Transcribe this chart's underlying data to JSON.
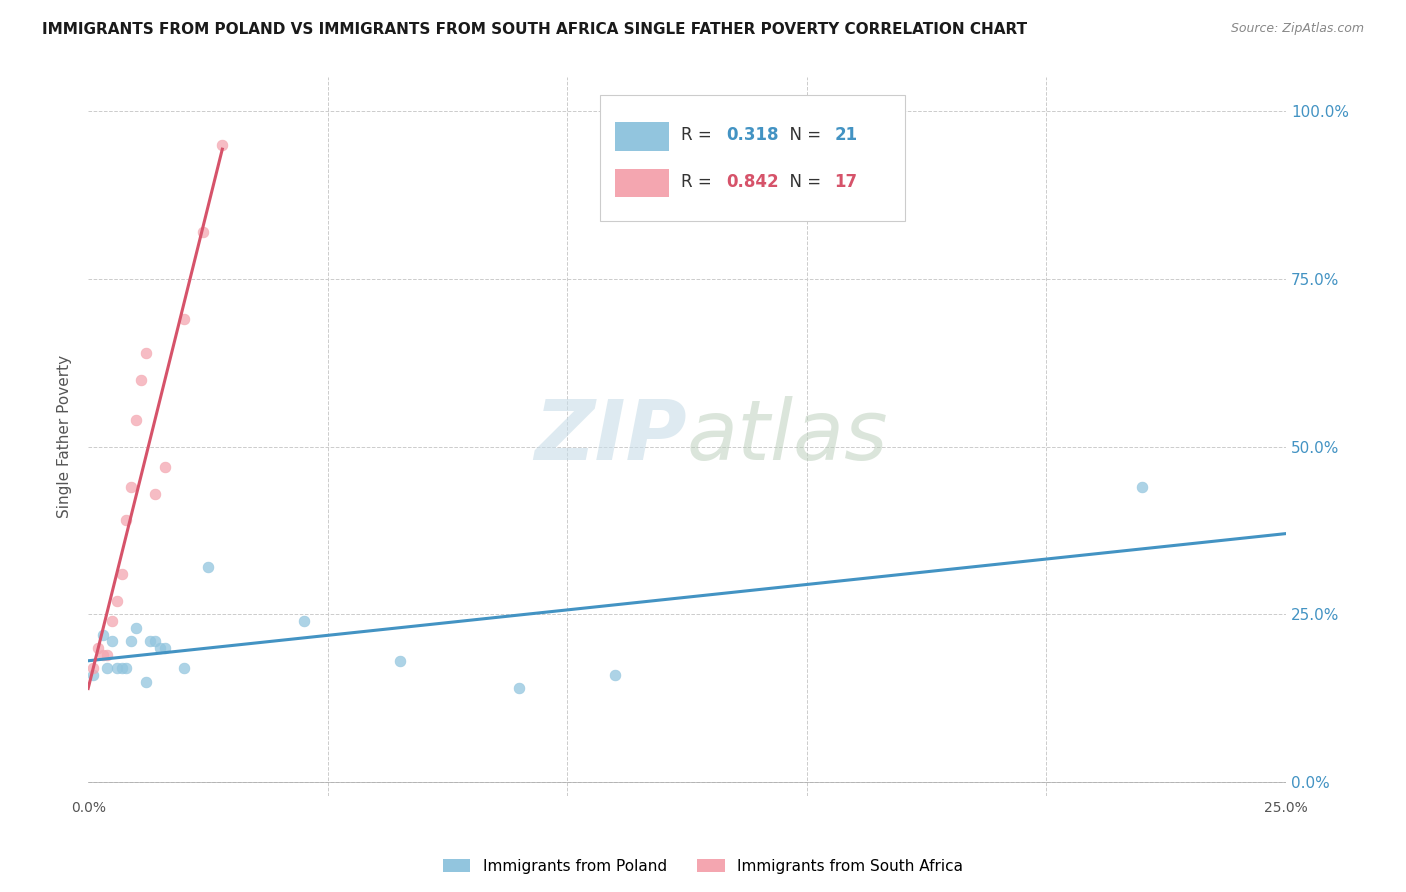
{
  "title": "IMMIGRANTS FROM POLAND VS IMMIGRANTS FROM SOUTH AFRICA SINGLE FATHER POVERTY CORRELATION CHART",
  "source": "Source: ZipAtlas.com",
  "ylabel": "Single Father Poverty",
  "xlim": [
    0.0,
    0.25
  ],
  "ylim": [
    -0.02,
    1.05
  ],
  "yticks": [
    0.0,
    0.25,
    0.5,
    0.75,
    1.0
  ],
  "ytick_labels_right": [
    "0.0%",
    "25.0%",
    "50.0%",
    "75.0%",
    "100.0%"
  ],
  "xticks": [
    0.0,
    0.05,
    0.1,
    0.15,
    0.2,
    0.25
  ],
  "xtick_labels": [
    "0.0%",
    "",
    "",
    "",
    "",
    "25.0%"
  ],
  "poland_R": 0.318,
  "poland_N": 21,
  "poland_color": "#92c5de",
  "poland_line_color": "#4393c3",
  "sa_R": 0.842,
  "sa_N": 17,
  "sa_color": "#f4a6b0",
  "sa_line_color": "#d6536a",
  "poland_x": [
    0.001,
    0.003,
    0.004,
    0.005,
    0.006,
    0.007,
    0.008,
    0.009,
    0.01,
    0.012,
    0.013,
    0.014,
    0.015,
    0.016,
    0.02,
    0.025,
    0.045,
    0.065,
    0.09,
    0.11,
    0.22
  ],
  "poland_y": [
    0.16,
    0.22,
    0.17,
    0.21,
    0.17,
    0.17,
    0.17,
    0.21,
    0.23,
    0.15,
    0.21,
    0.21,
    0.2,
    0.2,
    0.17,
    0.32,
    0.24,
    0.18,
    0.14,
    0.16,
    0.44
  ],
  "sa_x": [
    0.001,
    0.002,
    0.003,
    0.004,
    0.005,
    0.006,
    0.007,
    0.008,
    0.009,
    0.01,
    0.011,
    0.012,
    0.014,
    0.016,
    0.02,
    0.024,
    0.028
  ],
  "sa_y": [
    0.17,
    0.2,
    0.19,
    0.19,
    0.24,
    0.27,
    0.31,
    0.39,
    0.44,
    0.54,
    0.6,
    0.64,
    0.43,
    0.47,
    0.69,
    0.82,
    0.95
  ],
  "watermark_zip": "ZIP",
  "watermark_atlas": "atlas",
  "background_color": "#ffffff",
  "grid_color": "#cccccc",
  "legend_poland_label": "Immigrants from Poland",
  "legend_sa_label": "Immigrants from South Africa"
}
